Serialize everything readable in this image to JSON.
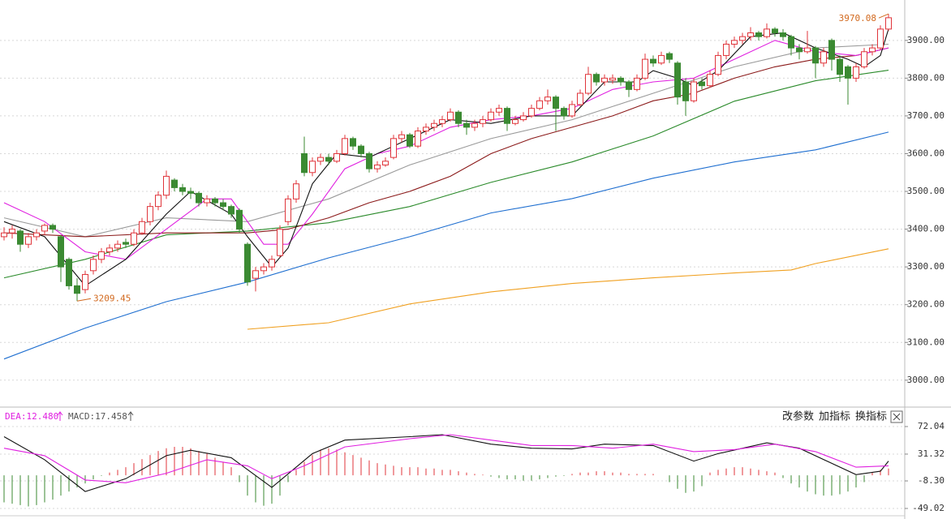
{
  "chart_data": [
    {
      "type": "candlestick",
      "ohlc": [
        [
          3380,
          3405,
          3370,
          3390
        ],
        [
          3390,
          3410,
          3375,
          3400
        ],
        [
          3395,
          3400,
          3340,
          3360
        ],
        [
          3360,
          3390,
          3350,
          3380
        ],
        [
          3380,
          3400,
          3370,
          3390
        ],
        [
          3395,
          3415,
          3385,
          3410
        ],
        [
          3410,
          3415,
          3390,
          3400
        ],
        [
          3380,
          3385,
          3260,
          3300
        ],
        [
          3320,
          3325,
          3240,
          3250
        ],
        [
          3250,
          3270,
          3209.45,
          3230
        ],
        [
          3240,
          3290,
          3230,
          3280
        ],
        [
          3290,
          3330,
          3280,
          3320
        ],
        [
          3320,
          3350,
          3310,
          3340
        ],
        [
          3340,
          3360,
          3330,
          3350
        ],
        [
          3350,
          3370,
          3340,
          3360
        ],
        [
          3365,
          3375,
          3350,
          3360
        ],
        [
          3360,
          3400,
          3355,
          3390
        ],
        [
          3390,
          3430,
          3385,
          3420
        ],
        [
          3420,
          3470,
          3410,
          3460
        ],
        [
          3460,
          3500,
          3450,
          3490
        ],
        [
          3490,
          3555,
          3480,
          3540
        ],
        [
          3530,
          3535,
          3500,
          3510
        ],
        [
          3510,
          3520,
          3490,
          3500
        ],
        [
          3500,
          3510,
          3480,
          3495
        ],
        [
          3495,
          3500,
          3460,
          3470
        ],
        [
          3470,
          3490,
          3460,
          3480
        ],
        [
          3480,
          3485,
          3460,
          3470
        ],
        [
          3470,
          3480,
          3450,
          3460
        ],
        [
          3460,
          3465,
          3430,
          3440
        ],
        [
          3450,
          3455,
          3390,
          3400
        ],
        [
          3360,
          3365,
          3250,
          3260
        ],
        [
          3270,
          3300,
          3235,
          3290
        ],
        [
          3290,
          3310,
          3280,
          3300
        ],
        [
          3300,
          3330,
          3290,
          3320
        ],
        [
          3330,
          3410,
          3325,
          3400
        ],
        [
          3420,
          3490,
          3410,
          3480
        ],
        [
          3480,
          3530,
          3470,
          3520
        ],
        [
          3600,
          3645,
          3540,
          3550
        ],
        [
          3550,
          3590,
          3540,
          3580
        ],
        [
          3580,
          3600,
          3570,
          3590
        ],
        [
          3590,
          3600,
          3570,
          3580
        ],
        [
          3580,
          3610,
          3575,
          3600
        ],
        [
          3600,
          3650,
          3595,
          3640
        ],
        [
          3640,
          3645,
          3610,
          3620
        ],
        [
          3620,
          3625,
          3590,
          3600
        ],
        [
          3600,
          3605,
          3550,
          3560
        ],
        [
          3560,
          3580,
          3550,
          3570
        ],
        [
          3570,
          3590,
          3565,
          3580
        ],
        [
          3590,
          3650,
          3585,
          3640
        ],
        [
          3640,
          3660,
          3630,
          3650
        ],
        [
          3650,
          3655,
          3615,
          3620
        ],
        [
          3620,
          3670,
          3615,
          3660
        ],
        [
          3660,
          3680,
          3650,
          3670
        ],
        [
          3670,
          3690,
          3660,
          3680
        ],
        [
          3680,
          3700,
          3670,
          3690
        ],
        [
          3690,
          3720,
          3685,
          3710
        ],
        [
          3710,
          3715,
          3670,
          3680
        ],
        [
          3680,
          3690,
          3650,
          3670
        ],
        [
          3670,
          3690,
          3660,
          3680
        ],
        [
          3680,
          3700,
          3670,
          3690
        ],
        [
          3690,
          3720,
          3685,
          3710
        ],
        [
          3710,
          3730,
          3700,
          3720
        ],
        [
          3720,
          3725,
          3660,
          3680
        ],
        [
          3680,
          3700,
          3675,
          3690
        ],
        [
          3690,
          3710,
          3685,
          3700
        ],
        [
          3700,
          3730,
          3695,
          3720
        ],
        [
          3720,
          3750,
          3715,
          3740
        ],
        [
          3740,
          3770,
          3730,
          3750
        ],
        [
          3750,
          3755,
          3660,
          3720
        ],
        [
          3720,
          3725,
          3690,
          3700
        ],
        [
          3700,
          3740,
          3695,
          3730
        ],
        [
          3730,
          3770,
          3725,
          3760
        ],
        [
          3760,
          3830,
          3755,
          3810
        ],
        [
          3810,
          3815,
          3780,
          3790
        ],
        [
          3790,
          3810,
          3780,
          3800
        ],
        [
          3795,
          3810,
          3785,
          3800
        ],
        [
          3800,
          3805,
          3780,
          3790
        ],
        [
          3790,
          3795,
          3750,
          3770
        ],
        [
          3770,
          3810,
          3765,
          3800
        ],
        [
          3800,
          3865,
          3795,
          3850
        ],
        [
          3850,
          3860,
          3830,
          3840
        ],
        [
          3840,
          3870,
          3835,
          3860
        ],
        [
          3865,
          3870,
          3840,
          3850
        ],
        [
          3840,
          3845,
          3730,
          3750
        ],
        [
          3790,
          3800,
          3700,
          3740
        ],
        [
          3740,
          3800,
          3735,
          3790
        ],
        [
          3790,
          3800,
          3770,
          3780
        ],
        [
          3780,
          3820,
          3775,
          3810
        ],
        [
          3810,
          3870,
          3805,
          3860
        ],
        [
          3860,
          3900,
          3850,
          3890
        ],
        [
          3890,
          3910,
          3880,
          3900
        ],
        [
          3900,
          3920,
          3890,
          3910
        ],
        [
          3910,
          3935,
          3900,
          3920
        ],
        [
          3920,
          3925,
          3900,
          3910
        ],
        [
          3910,
          3945,
          3905,
          3930
        ],
        [
          3930,
          3935,
          3910,
          3920
        ],
        [
          3920,
          3930,
          3900,
          3910
        ],
        [
          3910,
          3915,
          3860,
          3880
        ],
        [
          3880,
          3890,
          3850,
          3870
        ],
        [
          3870,
          3925,
          3865,
          3880
        ],
        [
          3880,
          3885,
          3800,
          3840
        ],
        [
          3840,
          3880,
          3830,
          3870
        ],
        [
          3900,
          3905,
          3820,
          3850
        ],
        [
          3850,
          3860,
          3790,
          3810
        ],
        [
          3830,
          3835,
          3730,
          3800
        ],
        [
          3800,
          3840,
          3790,
          3830
        ],
        [
          3830,
          3880,
          3825,
          3870
        ],
        [
          3870,
          3890,
          3860,
          3880
        ],
        [
          3880,
          3940,
          3875,
          3930
        ],
        [
          3930,
          3970.08,
          3925,
          3960
        ]
      ],
      "up_color": "#e0353b",
      "down_color": "#3b8a32",
      "lines": [
        {
          "color": "#1f6fd0",
          "x": [
            0,
            10,
            20,
            30,
            40,
            50,
            60,
            70,
            80,
            90,
            100,
            109
          ],
          "values": [
            3056,
            3138,
            3208,
            3260,
            3324,
            3380,
            3443,
            3481,
            3535,
            3578,
            3610,
            3657
          ]
        },
        {
          "color": "#f0a020",
          "x": [
            30,
            40,
            50,
            60,
            70,
            80,
            90,
            97,
            100,
            109
          ],
          "values": [
            3135,
            3152,
            3202,
            3234,
            3256,
            3271,
            3284,
            3292,
            3309,
            3348
          ]
        },
        {
          "color": "#2a8a2a",
          "x": [
            0,
            10,
            20,
            30,
            40,
            50,
            60,
            70,
            80,
            90,
            100,
            109
          ],
          "values": [
            3271,
            3320,
            3385,
            3395,
            3417,
            3460,
            3524,
            3578,
            3647,
            3739,
            3793,
            3821
          ]
        },
        {
          "color": "#9a9a9a",
          "x": [
            0,
            10,
            20,
            30,
            40,
            50,
            60,
            70,
            80,
            90,
            100,
            109
          ],
          "values": [
            3430,
            3380,
            3430,
            3420,
            3480,
            3570,
            3640,
            3690,
            3760,
            3830,
            3880,
            3890
          ]
        },
        {
          "color": "#8b1a1a",
          "x": [
            0,
            10,
            20,
            30,
            35,
            40,
            45,
            50,
            55,
            60,
            65,
            70,
            75,
            80,
            85,
            90,
            95,
            100,
            105,
            109
          ],
          "values": [
            3390,
            3380,
            3390,
            3390,
            3400,
            3430,
            3470,
            3500,
            3540,
            3600,
            3640,
            3670,
            3700,
            3740,
            3760,
            3800,
            3830,
            3850,
            3860,
            3880
          ]
        },
        {
          "color": "#e020e0",
          "x": [
            0,
            5,
            10,
            15,
            20,
            25,
            28,
            32,
            35,
            38,
            42,
            46,
            50,
            55,
            60,
            65,
            70,
            75,
            80,
            85,
            90,
            95,
            100,
            105,
            109
          ],
          "values": [
            3470,
            3420,
            3340,
            3320,
            3400,
            3480,
            3480,
            3360,
            3360,
            3440,
            3560,
            3600,
            3620,
            3670,
            3690,
            3700,
            3720,
            3770,
            3790,
            3800,
            3850,
            3900,
            3870,
            3860,
            3880
          ]
        },
        {
          "color": "#111111",
          "x": [
            0,
            5,
            10,
            15,
            20,
            23,
            28,
            30,
            33,
            35,
            38,
            41,
            45,
            50,
            55,
            60,
            65,
            70,
            74,
            78,
            80,
            83,
            85,
            88,
            92,
            96,
            100,
            104,
            106,
            108,
            109
          ],
          "values": [
            3420,
            3380,
            3250,
            3320,
            3440,
            3500,
            3440,
            3380,
            3300,
            3350,
            3520,
            3600,
            3590,
            3640,
            3690,
            3680,
            3700,
            3700,
            3790,
            3790,
            3820,
            3800,
            3780,
            3820,
            3910,
            3920,
            3880,
            3850,
            3830,
            3860,
            3930
          ]
        }
      ],
      "high_label": "3970.08",
      "low_label": "3209.45",
      "label_color": "#d2691e",
      "ylim": [
        2933,
        4007
      ],
      "yticks": [
        {
          "value": 3000,
          "label": "3000.00"
        },
        {
          "value": 3100,
          "label": "3100.00"
        },
        {
          "value": 3200,
          "label": "3200.00"
        },
        {
          "value": 3300,
          "label": "3300.00"
        },
        {
          "value": 3400,
          "label": "3400.00"
        },
        {
          "value": 3500,
          "label": "3500.00"
        },
        {
          "value": 3600,
          "label": "3600.00"
        },
        {
          "value": 3700,
          "label": "3700.00"
        },
        {
          "value": 3800,
          "label": "3800.00"
        },
        {
          "value": 3900,
          "label": "3900.00"
        }
      ],
      "grid": true
    },
    {
      "type": "macd",
      "indicators": [
        "DEA:12.480",
        "MACD:17.458"
      ],
      "buttons": [
        "改参数",
        "加指标",
        "换指标"
      ],
      "histogram": [
        -40,
        -42,
        -44,
        -46,
        -44,
        -40,
        -36,
        -30,
        -24,
        -18,
        -12,
        -6,
        -1,
        4,
        8,
        12,
        18,
        24,
        30,
        36,
        40,
        42,
        42,
        40,
        36,
        32,
        26,
        20,
        12,
        -10,
        -30,
        -40,
        -45,
        -42,
        -30,
        -10,
        8,
        20,
        30,
        38,
        40,
        38,
        34,
        30,
        26,
        22,
        18,
        16,
        14,
        12,
        12,
        12,
        10,
        10,
        8,
        8,
        6,
        4,
        2,
        1,
        -2,
        -4,
        -6,
        -6,
        -8,
        -8,
        -6,
        -4,
        -2,
        -1,
        2,
        4,
        4,
        6,
        6,
        4,
        4,
        2,
        2,
        2,
        2,
        0,
        -10,
        -20,
        -26,
        -24,
        -16,
        4,
        8,
        10,
        12,
        12,
        10,
        8,
        6,
        4,
        -4,
        -12,
        -18,
        -24,
        -28,
        -30,
        -30,
        -28,
        -24,
        -18,
        -10,
        4,
        8,
        10
      ],
      "up_color": "#e0353b",
      "down_color": "#3b8a32",
      "lines": [
        {
          "color": "#111111",
          "x": [
            0,
            5,
            10,
            15,
            20,
            23,
            28,
            33,
            38,
            42,
            50,
            54,
            60,
            65,
            70,
            74,
            80,
            85,
            88,
            94,
            98,
            105,
            108,
            109
          ],
          "values": [
            57,
            23,
            -24,
            -5,
            29,
            37,
            26,
            -18,
            32,
            52,
            57,
            60,
            46,
            40,
            39,
            46,
            44,
            21,
            32,
            48,
            40,
            1,
            6,
            21
          ]
        },
        {
          "color": "#e020e0",
          "x": [
            0,
            5,
            10,
            15,
            20,
            25,
            30,
            33,
            37,
            42,
            50,
            55,
            60,
            65,
            70,
            75,
            80,
            85,
            90,
            95,
            100,
            105,
            109
          ],
          "values": [
            40,
            29,
            -7,
            -11,
            3,
            23,
            14,
            -5,
            14,
            42,
            54,
            60,
            52,
            44,
            44,
            40,
            46,
            35,
            38,
            46,
            35,
            12,
            14
          ]
        }
      ],
      "ylim": [
        -58.6,
        94.8
      ],
      "yticks": [
        72.04,
        31.32,
        {
          "value": -8.3,
          "label": "-8.30"
        },
        -49.02
      ],
      "grid": true
    }
  ]
}
